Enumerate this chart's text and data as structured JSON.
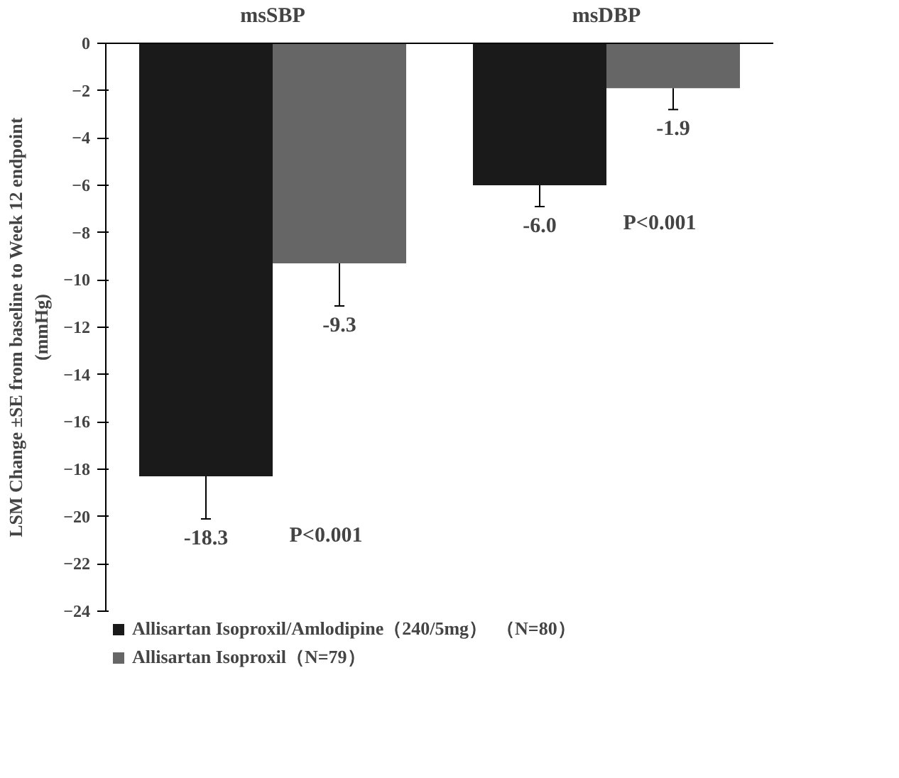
{
  "chart_data": {
    "type": "bar",
    "ylabel": "LSM Change ±SE from baseline to Week 12 endpoint\n(mmHg)",
    "categories": [
      "msSBP",
      "msDBP"
    ],
    "series": [
      {
        "name": "Allisartan Isoproxil/Amlodipine（240/5mg）  （N=80）",
        "color": "#1a1a1a",
        "values": [
          -18.3,
          -6.0
        ],
        "value_labels": [
          "-18.3",
          "-6.0"
        ],
        "errors": [
          [
            -20.1,
            -18.3
          ],
          [
            -6.9,
            -6.0
          ]
        ]
      },
      {
        "name": "Allisartan Isoproxil（N=79）",
        "color": "#666666",
        "values": [
          -9.3,
          -1.9
        ],
        "value_labels": [
          "-9.3",
          "-1.9"
        ],
        "errors": [
          [
            -11.1,
            -9.3
          ],
          [
            -2.8,
            -1.9
          ]
        ]
      }
    ],
    "ylim": [
      -24,
      0
    ],
    "yticks": [
      0,
      -2,
      -4,
      -6,
      -8,
      -10,
      -12,
      -14,
      -16,
      -18,
      -20,
      -22,
      -24
    ],
    "grid": false,
    "legend": "bottom",
    "annotations": [
      "P<0.001",
      "P<0.001"
    ]
  }
}
